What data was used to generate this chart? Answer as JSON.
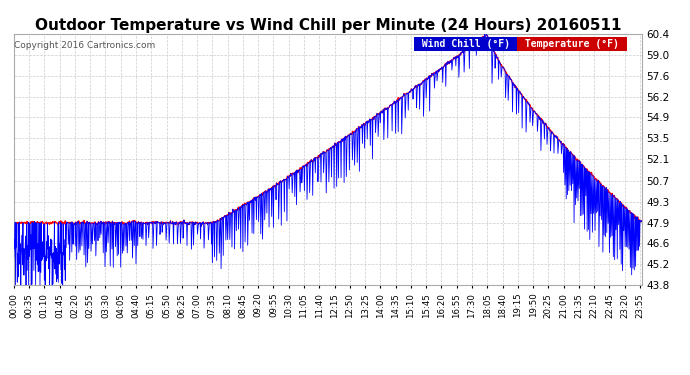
{
  "title": "Outdoor Temperature vs Wind Chill per Minute (24 Hours) 20160511",
  "copyright": "Copyright 2016 Cartronics.com",
  "yticks": [
    43.8,
    45.2,
    46.6,
    47.9,
    49.3,
    50.7,
    52.1,
    53.5,
    54.9,
    56.2,
    57.6,
    59.0,
    60.4
  ],
  "ymin": 43.8,
  "ymax": 60.4,
  "temp_color": "#ff0000",
  "wind_color": "#0000ff",
  "background_color": "#ffffff",
  "grid_color": "#cccccc",
  "title_fontsize": 11,
  "n_minutes": 1440,
  "tick_step": 35
}
